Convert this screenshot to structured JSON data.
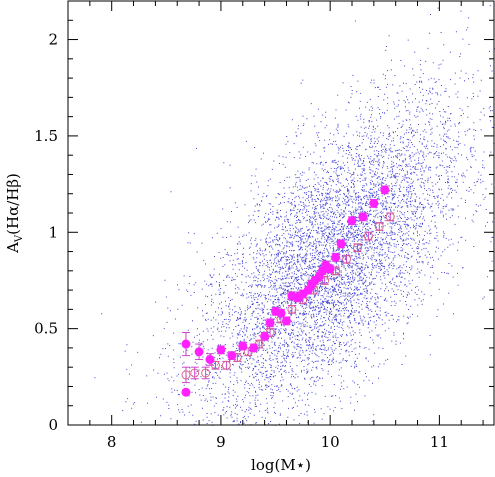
{
  "chart_data": {
    "type": "scatter",
    "xlabel": "log(M⋆)",
    "ylabel": "A_V(Hα/Hβ)",
    "xlim": [
      7.6,
      11.5
    ],
    "ylim": [
      0,
      2.2
    ],
    "x_ticks": [
      {
        "value": 8,
        "label": "8"
      },
      {
        "value": 9,
        "label": "9"
      },
      {
        "value": 10,
        "label": "10"
      },
      {
        "value": 11,
        "label": "11"
      }
    ],
    "y_ticks": [
      {
        "value": 0,
        "label": "0"
      },
      {
        "value": 0.5,
        "label": "0.5"
      },
      {
        "value": 1,
        "label": "1"
      },
      {
        "value": 1.5,
        "label": "1.5"
      },
      {
        "value": 2,
        "label": "2"
      }
    ],
    "colors": {
      "cloud": "#2222cc",
      "filled": "#ff22ff",
      "open": "#dd6688",
      "errorbar": "#cc44cc"
    },
    "background_cloud": {
      "description": "dense scatter of individual galaxies",
      "center_x": 10.0,
      "center_y": 0.85,
      "trend_slope": 0.45,
      "spread_x": 0.62,
      "spread_y": 0.32
    },
    "series": [
      {
        "marker": "filled-circle",
        "x": [
          8.68,
          8.68,
          8.8,
          8.9,
          9.0,
          9.1,
          9.2,
          9.3,
          9.4,
          9.45,
          9.5,
          9.55,
          9.6,
          9.65,
          9.7,
          9.72,
          9.75,
          9.8,
          9.83,
          9.86,
          9.9,
          9.93,
          9.96,
          10.0,
          10.05,
          10.1,
          10.2,
          10.3,
          10.4,
          10.5
        ],
        "y": [
          0.42,
          0.17,
          0.38,
          0.34,
          0.39,
          0.36,
          0.41,
          0.4,
          0.46,
          0.53,
          0.59,
          0.58,
          0.54,
          0.67,
          0.66,
          0.67,
          0.68,
          0.7,
          0.73,
          0.75,
          0.77,
          0.8,
          0.83,
          0.81,
          0.87,
          0.94,
          1.06,
          1.08,
          1.15,
          1.22
        ],
        "yerr": [
          0.06,
          0.0,
          0.04,
          0.03,
          0.02,
          0.02,
          0.02,
          0.02,
          0.02,
          0.02,
          0.02,
          0.02,
          0.02,
          0.02,
          0.02,
          0.02,
          0.02,
          0.02,
          0.02,
          0.02,
          0.02,
          0.02,
          0.02,
          0.02,
          0.02,
          0.02,
          0.02,
          0.02,
          0.02,
          0.02
        ]
      },
      {
        "marker": "open-circle",
        "x": [
          8.68,
          8.76,
          8.86,
          8.95,
          9.05,
          9.15,
          9.25,
          9.35,
          9.45,
          9.55,
          9.65,
          9.75,
          9.85,
          9.95,
          10.05,
          10.15,
          10.25,
          10.35,
          10.45,
          10.55
        ],
        "y": [
          0.26,
          0.27,
          0.27,
          0.31,
          0.31,
          0.35,
          0.38,
          0.42,
          0.48,
          0.55,
          0.6,
          0.65,
          0.7,
          0.75,
          0.8,
          0.86,
          0.92,
          0.98,
          1.03,
          1.08
        ],
        "yerr": [
          0.04,
          0.03,
          0.03,
          0.02,
          0.02,
          0.02,
          0.02,
          0.02,
          0.02,
          0.02,
          0.02,
          0.02,
          0.02,
          0.02,
          0.02,
          0.02,
          0.02,
          0.02,
          0.02,
          0.02
        ]
      }
    ]
  }
}
